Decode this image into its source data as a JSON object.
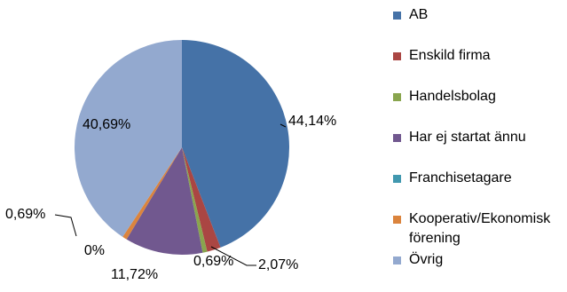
{
  "chart_data": {
    "type": "pie",
    "categories": [
      "AB",
      "Enskild firma",
      "Handelsbolag",
      "Har ej startat ännu",
      "Franchisetagare",
      "Kooperativ/Ekonomisk förening",
      "Övrig"
    ],
    "values": [
      44.14,
      2.07,
      0.69,
      11.72,
      0,
      0.69,
      40.69
    ],
    "value_labels": [
      "44,14%",
      "2,07%",
      "0,69%",
      "11,72%",
      "0%",
      "0,69%",
      "40,69%"
    ],
    "colors": [
      "#4572a7",
      "#aa4643",
      "#89a54e",
      "#71588f",
      "#4198af",
      "#db843d",
      "#93a9cf"
    ]
  }
}
